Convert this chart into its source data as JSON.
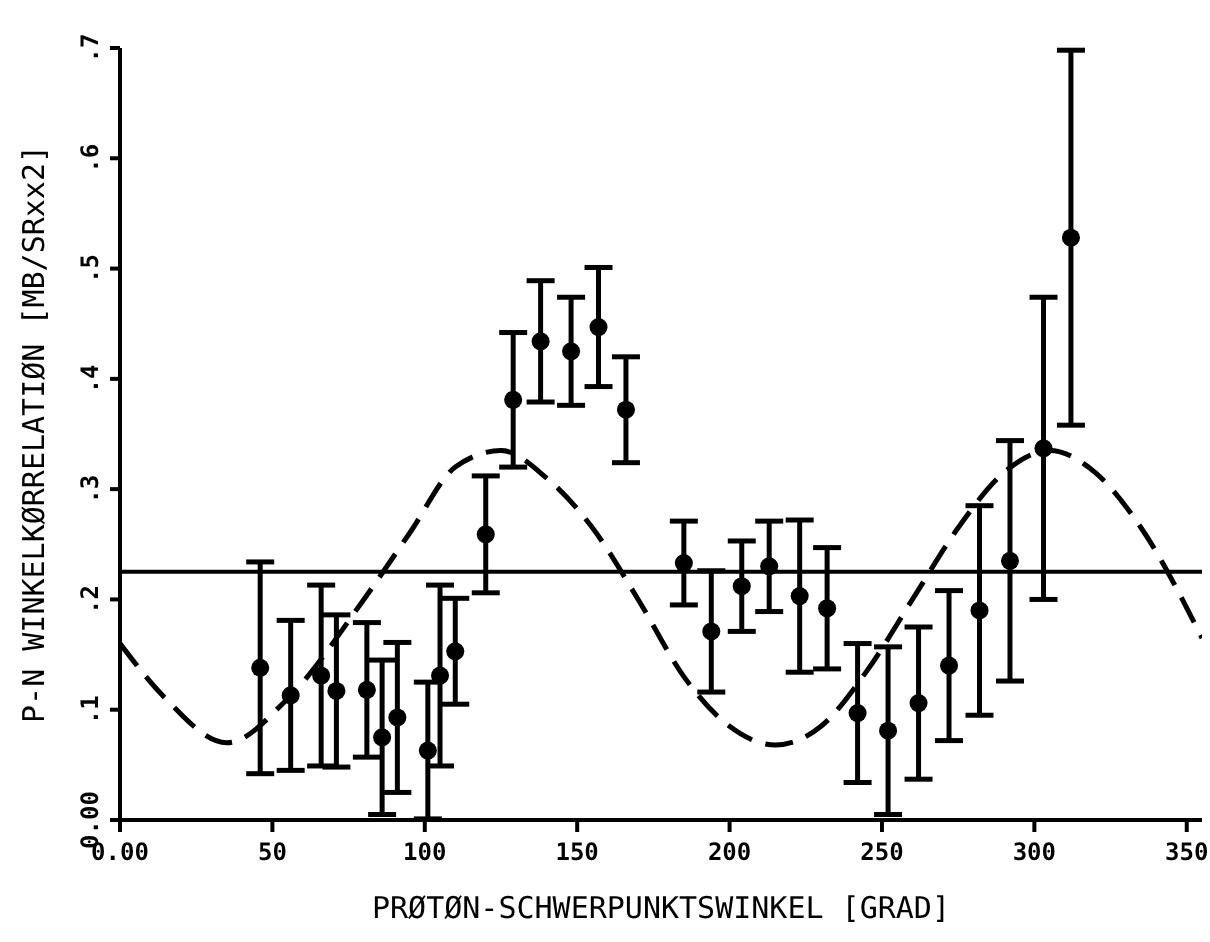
{
  "chart_data": {
    "type": "scatter",
    "xlabel": "PRØTØN-SCHWERPUNKTSWINKEL  [GRAD]",
    "ylabel": "P-N WINKELKØRRELATIØN  [MB/SRxx2]",
    "xlim": [
      0,
      355
    ],
    "xticks": [
      {
        "value": 0,
        "label": "0.00"
      },
      50,
      100,
      150,
      200,
      250,
      300,
      350
    ],
    "ylim": [
      0,
      0.7
    ],
    "yticks": [
      {
        "value": 0,
        "label": "0.00"
      },
      {
        "value": 0.1,
        "label": ".1"
      },
      {
        "value": 0.2,
        "label": ".2"
      },
      {
        "value": 0.3,
        "label": ".3"
      },
      {
        "value": 0.4,
        "label": ".4"
      },
      {
        "value": 0.5,
        "label": ".5"
      },
      {
        "value": 0.6,
        "label": ".6"
      },
      {
        "value": 0.7,
        "label": ".7"
      }
    ],
    "grid": false,
    "ref_lines": [
      {
        "axis": "y",
        "value": 0.225,
        "color": "#000000",
        "line_style": "solid"
      }
    ],
    "series": [
      {
        "color": "#000000",
        "marker": "circle",
        "x": [
          46,
          56,
          66,
          71,
          81,
          86,
          91,
          101,
          105,
          110,
          120,
          129,
          138,
          148,
          157,
          166,
          185,
          194,
          204,
          213,
          223,
          232,
          242,
          252,
          262,
          272,
          282,
          292,
          303,
          312
        ],
        "values": [
          0.138,
          0.113,
          0.131,
          0.117,
          0.118,
          0.075,
          0.093,
          0.063,
          0.131,
          0.153,
          0.259,
          0.381,
          0.434,
          0.425,
          0.447,
          0.372,
          0.233,
          0.171,
          0.212,
          0.23,
          0.203,
          0.192,
          0.097,
          0.081,
          0.106,
          0.14,
          0.19,
          0.235,
          0.337,
          0.528
        ],
        "errors": [
          0.096,
          0.068,
          0.082,
          0.069,
          0.061,
          0.07,
          0.068,
          0.062,
          0.082,
          0.048,
          0.053,
          0.061,
          0.055,
          0.049,
          0.054,
          0.048,
          0.038,
          0.055,
          0.041,
          0.041,
          0.069,
          0.055,
          0.063,
          0.076,
          0.069,
          0.068,
          0.095,
          0.109,
          0.137,
          0.17
        ]
      },
      {
        "type": "line",
        "color": "#000000",
        "line_style": "dashed",
        "marker": "none",
        "x": [
          0,
          15,
          35,
          55,
          80,
          95,
          110,
          125,
          140,
          155,
          170,
          185,
          200,
          215,
          230,
          245,
          260,
          275,
          290,
          305,
          320,
          335,
          355
        ],
        "values": [
          0.16,
          0.11,
          0.07,
          0.11,
          0.2,
          0.26,
          0.32,
          0.335,
          0.31,
          0.265,
          0.2,
          0.13,
          0.085,
          0.068,
          0.085,
          0.135,
          0.2,
          0.265,
          0.315,
          0.335,
          0.315,
          0.265,
          0.165
        ]
      }
    ]
  }
}
